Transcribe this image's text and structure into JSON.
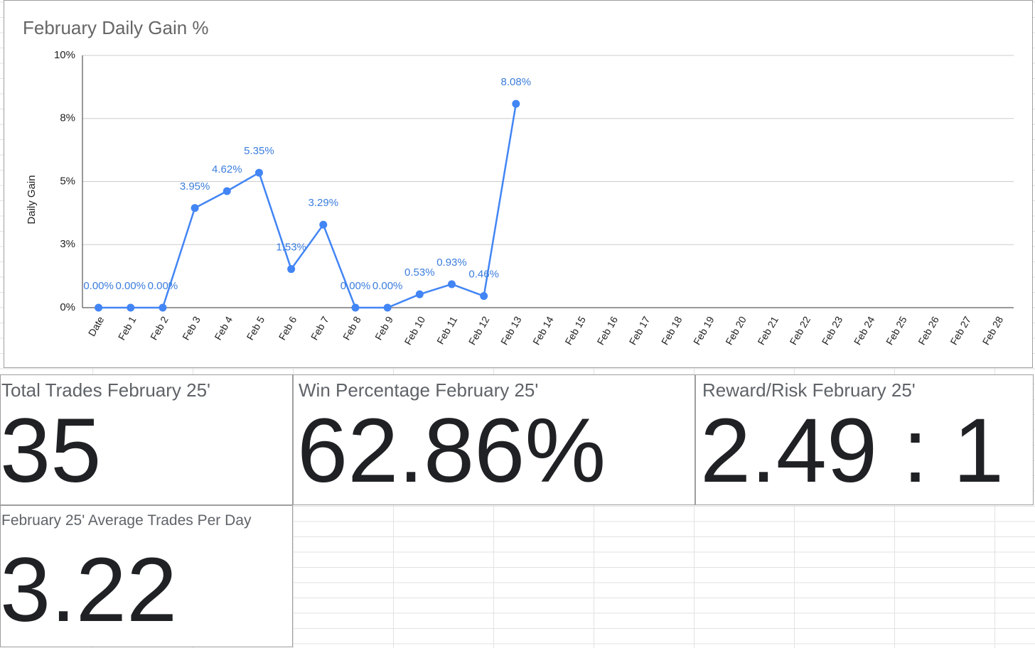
{
  "chart_data": {
    "type": "line",
    "title": "February Daily Gain %",
    "y_label": "Daily Gain",
    "color": "#4285f4",
    "categories": [
      "Date",
      "Feb 1",
      "Feb 2",
      "Feb 3",
      "Feb 4",
      "Feb 5",
      "Feb 6",
      "Feb 7",
      "Feb 8",
      "Feb 9",
      "Feb 10",
      "Feb 11",
      "Feb 12",
      "Feb 13",
      "Feb 14",
      "Feb 15",
      "Feb 16",
      "Feb 17",
      "Feb 18",
      "Feb 19",
      "Feb 20",
      "Feb 21",
      "Feb 22",
      "Feb 23",
      "Feb 24",
      "Feb 25",
      "Feb 26",
      "Feb 27",
      "Feb 28"
    ],
    "values": [
      0,
      0,
      0,
      3.95,
      4.62,
      5.35,
      1.53,
      3.29,
      0,
      0,
      0.53,
      0.93,
      0.46,
      8.08,
      null,
      null,
      null,
      null,
      null,
      null,
      null,
      null,
      null,
      null,
      null,
      null,
      null,
      null,
      null
    ],
    "value_labels": [
      "0.00%",
      "0.00%",
      "0.00%",
      "3.95%",
      "4.62%",
      "5.35%",
      "1.53%",
      "3.29%",
      "0.00%",
      "0.00%",
      "0.53%",
      "0.93%",
      "0.46%",
      "8.08%",
      null,
      null,
      null,
      null,
      null,
      null,
      null,
      null,
      null,
      null,
      null,
      null,
      null,
      null,
      null
    ],
    "ylim": [
      0,
      10
    ],
    "yticks": [
      {
        "value": 0,
        "label": "0%"
      },
      {
        "value": 2.5,
        "label": "3%"
      },
      {
        "value": 5,
        "label": "5%"
      },
      {
        "value": 7.5,
        "label": "8%"
      },
      {
        "value": 10,
        "label": "10%"
      }
    ],
    "grid": true
  },
  "scorecards": [
    {
      "label": "Total Trades February 25'",
      "value": "35"
    },
    {
      "label": "Win Percentage February 25'",
      "value": "62.86%"
    },
    {
      "label": "Reward/Risk February 25'",
      "value": "2.49 : 1"
    },
    {
      "label": "February 25' Average Trades Per Day",
      "value": "3.22"
    }
  ]
}
